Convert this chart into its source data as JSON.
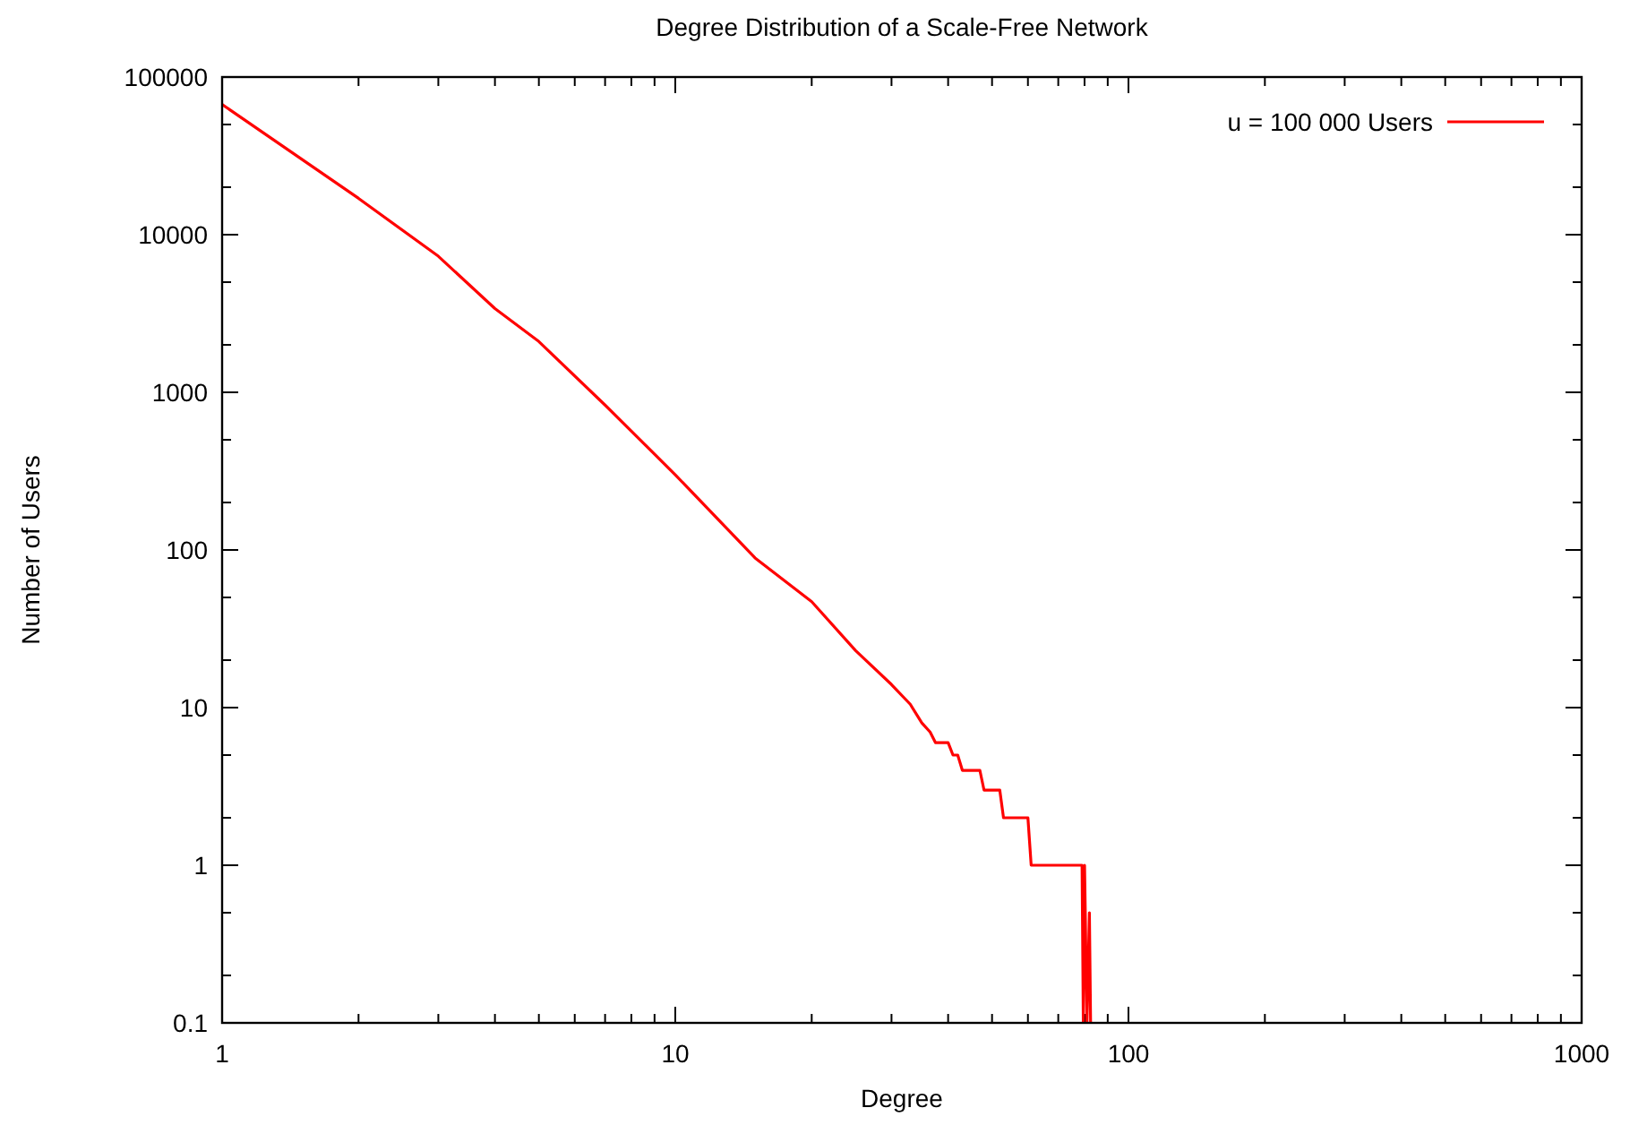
{
  "chart_data": {
    "type": "line",
    "title": "Degree Distribution of a Scale-Free Network",
    "xlabel": "Degree",
    "ylabel": "Number of Users",
    "log": "xy",
    "grid": false,
    "legend": "top right",
    "marker": "none",
    "line_style": "solid",
    "xlim": [
      1,
      1000
    ],
    "ylim": [
      0.1,
      100000
    ],
    "xticks": [
      1,
      {
        "value": 2,
        "label": null
      },
      {
        "value": 3,
        "label": null
      },
      {
        "value": 4,
        "label": null
      },
      {
        "value": 5,
        "label": null
      },
      {
        "value": 6,
        "label": null
      },
      {
        "value": 7,
        "label": null
      },
      {
        "value": 8,
        "label": null
      },
      {
        "value": 9,
        "label": null
      },
      10,
      {
        "value": 20,
        "label": null
      },
      {
        "value": 30,
        "label": null
      },
      {
        "value": 40,
        "label": null
      },
      {
        "value": 50,
        "label": null
      },
      {
        "value": 60,
        "label": null
      },
      {
        "value": 70,
        "label": null
      },
      {
        "value": 80,
        "label": null
      },
      {
        "value": 90,
        "label": null
      },
      100,
      {
        "value": 200,
        "label": null
      },
      {
        "value": 300,
        "label": null
      },
      {
        "value": 400,
        "label": null
      },
      {
        "value": 500,
        "label": null
      },
      {
        "value": 600,
        "label": null
      },
      {
        "value": 700,
        "label": null
      },
      {
        "value": 800,
        "label": null
      },
      {
        "value": 900,
        "label": null
      },
      1000
    ],
    "yticks": [
      0.1,
      {
        "value": 0.2,
        "label": null
      },
      {
        "value": 0.5,
        "label": null
      },
      1,
      {
        "value": 2,
        "label": null
      },
      {
        "value": 5,
        "label": null
      },
      10,
      {
        "value": 20,
        "label": null
      },
      {
        "value": 50,
        "label": null
      },
      100,
      {
        "value": 200,
        "label": null
      },
      {
        "value": 500,
        "label": null
      },
      1000,
      {
        "value": 2000,
        "label": null
      },
      {
        "value": 5000,
        "label": null
      },
      10000,
      {
        "value": 20000,
        "label": null
      },
      {
        "value": 50000,
        "label": null
      },
      100000
    ],
    "series": [
      {
        "name": "u = 100 000 Users",
        "color": "#ff0000",
        "x": [
          1,
          2,
          3,
          4,
          5,
          7,
          10,
          15,
          20,
          25,
          30,
          33,
          35,
          36.5,
          37.5,
          40,
          41,
          42,
          43,
          47,
          48,
          52,
          53,
          60,
          61,
          79,
          79.5,
          80,
          81,
          82,
          82.5
        ],
        "values": [
          67000,
          17000,
          7300,
          3400,
          2100,
          830,
          300,
          89,
          47,
          23,
          14,
          10.5,
          8,
          7,
          6,
          6,
          5,
          5,
          4,
          4,
          3,
          3,
          2,
          2,
          1,
          1,
          0.1,
          1,
          0.1,
          0.5,
          0.1
        ]
      }
    ]
  }
}
